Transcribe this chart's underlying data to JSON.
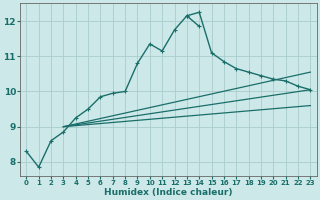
{
  "xlabel": "Humidex (Indice chaleur)",
  "background_color": "#cce8e8",
  "grid_color": "#aacccc",
  "line_color": "#1a6e6a",
  "xlim": [
    -0.5,
    23.5
  ],
  "ylim": [
    7.6,
    12.5
  ],
  "xticks": [
    0,
    1,
    2,
    3,
    4,
    5,
    6,
    7,
    8,
    9,
    10,
    11,
    12,
    13,
    14,
    15,
    16,
    17,
    18,
    19,
    20,
    21,
    22,
    23
  ],
  "yticks": [
    8,
    9,
    10,
    11,
    12
  ],
  "series": [
    {
      "x": [
        0,
        1,
        2,
        3,
        4,
        5,
        6,
        7,
        8,
        9,
        10,
        11,
        12,
        13,
        14
      ],
      "y": [
        8.3,
        7.85,
        8.6,
        8.85,
        9.25,
        9.5,
        9.85,
        9.95,
        10.0,
        10.8,
        11.35,
        11.15,
        11.75,
        12.15,
        11.85
      ],
      "marker": "+",
      "markersize": 3.5,
      "lw": 1.0,
      "ls": "-"
    },
    {
      "x": [
        13,
        14,
        15,
        16,
        17,
        18,
        19,
        20,
        21,
        22,
        23
      ],
      "y": [
        12.15,
        12.25,
        11.1,
        10.85,
        10.65,
        10.55,
        10.45,
        10.35,
        10.3,
        10.15,
        10.05
      ],
      "marker": "+",
      "markersize": 3.5,
      "lw": 1.0,
      "ls": "-"
    },
    {
      "x": [
        3,
        23
      ],
      "y": [
        9.0,
        10.05
      ],
      "marker": null,
      "markersize": 0,
      "lw": 0.9,
      "ls": "-"
    },
    {
      "x": [
        3,
        23
      ],
      "y": [
        9.0,
        10.55
      ],
      "marker": null,
      "markersize": 0,
      "lw": 0.9,
      "ls": "-"
    },
    {
      "x": [
        3,
        23
      ],
      "y": [
        9.0,
        9.6
      ],
      "marker": null,
      "markersize": 0,
      "lw": 0.9,
      "ls": "-"
    }
  ]
}
